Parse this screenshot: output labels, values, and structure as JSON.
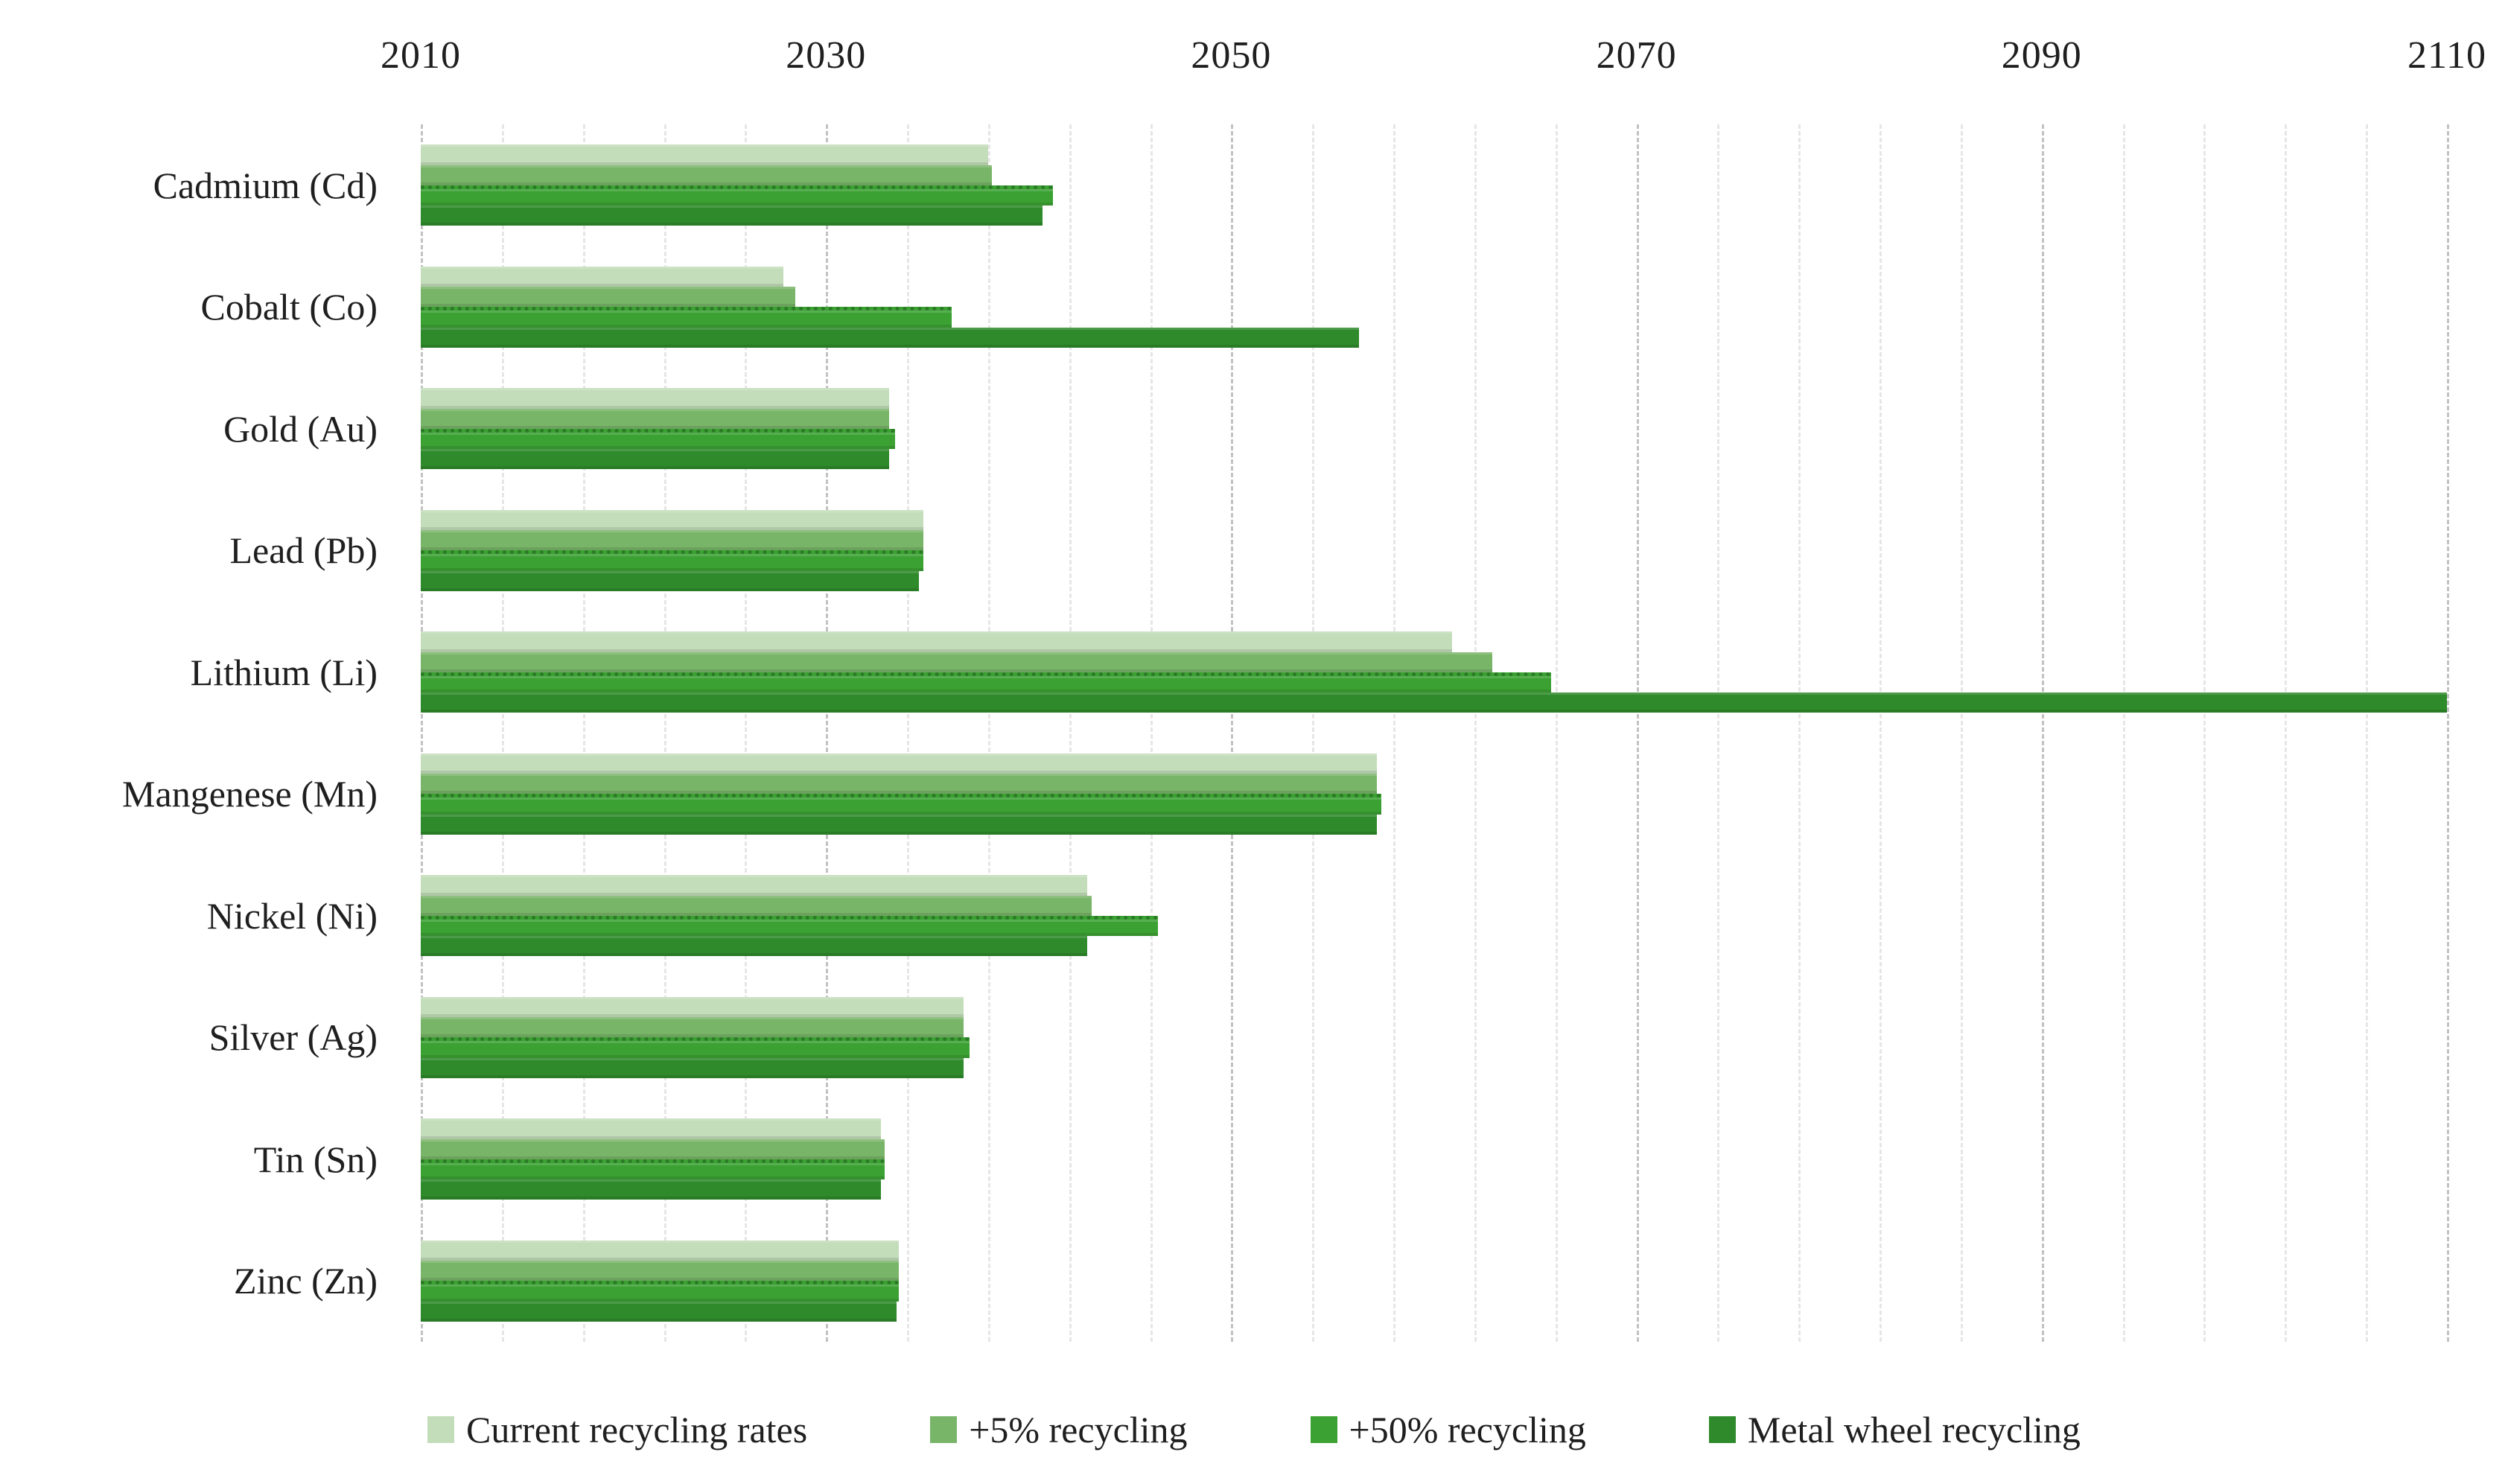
{
  "chart_data": {
    "type": "bar",
    "orientation": "horizontal",
    "title": "",
    "x_axis": {
      "position": "top",
      "min": 2010,
      "max": 2110,
      "major_ticks": [
        2010,
        2030,
        2050,
        2070,
        2090,
        2110
      ],
      "tick_labels": [
        "2010",
        "2030",
        "2050",
        "2070",
        "2090",
        "2110"
      ]
    },
    "gridlines": {
      "minor_every_years": 4,
      "major_every_years": 20,
      "minor_color": "#e6e6e6",
      "major_color": "#c2c2c2"
    },
    "categories": [
      "Cadmium (Cd)",
      "Cobalt (Co)",
      "Gold (Au)",
      "Lead (Pb)",
      "Lithium (Li)",
      "Mangenese (Mn)",
      "Nickel (Ni)",
      "Silver (Ag)",
      "Tin (Sn)",
      "Zinc (Zn)"
    ],
    "series": [
      {
        "name": "Current recycling rates",
        "color": "#c3ddba",
        "values": [
          2038.0,
          2027.9,
          2033.1,
          2034.8,
          2060.9,
          2057.2,
          2042.9,
          2036.8,
          2032.7,
          2033.6
        ]
      },
      {
        "name": "+5% recycling",
        "color": "#79b569",
        "values": [
          2038.2,
          2028.5,
          2033.1,
          2034.8,
          2062.9,
          2057.2,
          2043.1,
          2036.8,
          2032.9,
          2033.6
        ]
      },
      {
        "name": "+50% recycling",
        "color": "#3ba133",
        "values": [
          2041.2,
          2036.2,
          2033.4,
          2034.8,
          2065.8,
          2057.4,
          2046.4,
          2037.1,
          2032.9,
          2033.6
        ]
      },
      {
        "name": "Metal wheel recycling",
        "color": "#2e8a2b",
        "values": [
          2040.7,
          2056.3,
          2033.1,
          2034.6,
          2110.0,
          2057.2,
          2042.9,
          2036.8,
          2032.7,
          2033.5
        ]
      }
    ],
    "baseline_year": 2010,
    "legend_position": "bottom",
    "text_color": "#1f1f1f",
    "background_color": "#ffffff"
  }
}
